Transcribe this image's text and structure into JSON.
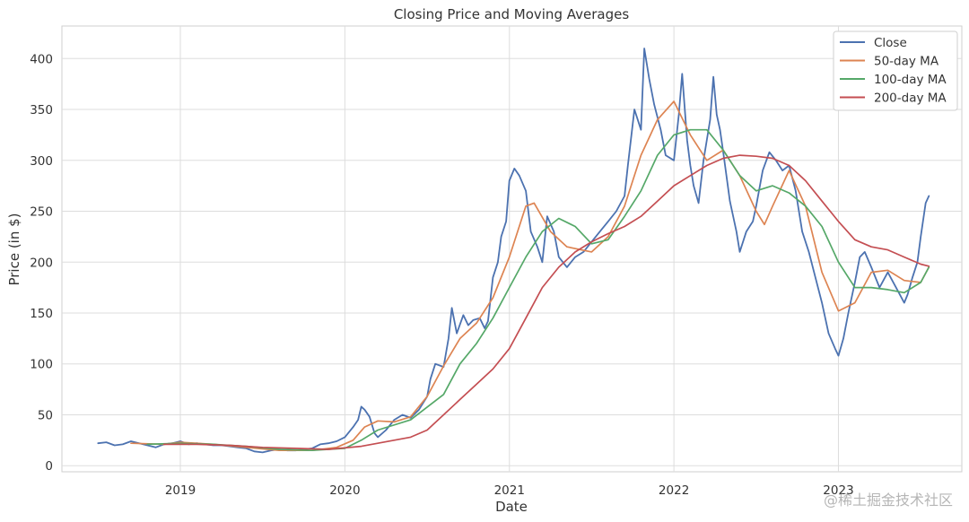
{
  "watermark": "@稀土掘金技术社区",
  "chart_data": {
    "type": "line",
    "title": "Closing Price and Moving Averages",
    "xlabel": "Date",
    "ylabel": "Price (in $)",
    "xlim": [
      2018.28,
      2023.75
    ],
    "ylim": [
      -6,
      432
    ],
    "x_ticks": [
      2019,
      2020,
      2021,
      2022,
      2023
    ],
    "x_tick_labels": [
      "2019",
      "2020",
      "2021",
      "2022",
      "2023"
    ],
    "y_ticks": [
      0,
      50,
      100,
      150,
      200,
      250,
      300,
      350,
      400
    ],
    "y_tick_labels": [
      "0",
      "50",
      "100",
      "150",
      "200",
      "250",
      "300",
      "350",
      "400"
    ],
    "grid": true,
    "legend_position": "top-right",
    "series": [
      {
        "name": "Close",
        "color": "#4c72b0",
        "points": [
          [
            2018.5,
            22
          ],
          [
            2018.55,
            23
          ],
          [
            2018.6,
            20
          ],
          [
            2018.65,
            21
          ],
          [
            2018.7,
            24
          ],
          [
            2018.75,
            22
          ],
          [
            2018.8,
            20
          ],
          [
            2018.85,
            18
          ],
          [
            2018.9,
            21
          ],
          [
            2018.95,
            22
          ],
          [
            2019.0,
            24
          ],
          [
            2019.05,
            21
          ],
          [
            2019.1,
            22
          ],
          [
            2019.15,
            21
          ],
          [
            2019.2,
            20
          ],
          [
            2019.25,
            20
          ],
          [
            2019.3,
            19
          ],
          [
            2019.35,
            18
          ],
          [
            2019.4,
            17
          ],
          [
            2019.45,
            14
          ],
          [
            2019.5,
            13
          ],
          [
            2019.55,
            15
          ],
          [
            2019.6,
            16
          ],
          [
            2019.65,
            15
          ],
          [
            2019.7,
            15
          ],
          [
            2019.75,
            16
          ],
          [
            2019.8,
            17
          ],
          [
            2019.85,
            21
          ],
          [
            2019.9,
            22
          ],
          [
            2019.95,
            24
          ],
          [
            2020.0,
            28
          ],
          [
            2020.05,
            38
          ],
          [
            2020.08,
            45
          ],
          [
            2020.1,
            58
          ],
          [
            2020.12,
            55
          ],
          [
            2020.15,
            48
          ],
          [
            2020.18,
            32
          ],
          [
            2020.2,
            28
          ],
          [
            2020.25,
            35
          ],
          [
            2020.3,
            45
          ],
          [
            2020.35,
            50
          ],
          [
            2020.4,
            47
          ],
          [
            2020.45,
            55
          ],
          [
            2020.5,
            68
          ],
          [
            2020.52,
            85
          ],
          [
            2020.55,
            100
          ],
          [
            2020.6,
            97
          ],
          [
            2020.63,
            125
          ],
          [
            2020.65,
            155
          ],
          [
            2020.68,
            130
          ],
          [
            2020.72,
            148
          ],
          [
            2020.75,
            138
          ],
          [
            2020.78,
            143
          ],
          [
            2020.82,
            145
          ],
          [
            2020.85,
            135
          ],
          [
            2020.87,
            142
          ],
          [
            2020.9,
            185
          ],
          [
            2020.93,
            200
          ],
          [
            2020.95,
            225
          ],
          [
            2020.98,
            240
          ],
          [
            2021.0,
            280
          ],
          [
            2021.03,
            292
          ],
          [
            2021.06,
            285
          ],
          [
            2021.1,
            270
          ],
          [
            2021.13,
            230
          ],
          [
            2021.17,
            215
          ],
          [
            2021.2,
            200
          ],
          [
            2021.23,
            245
          ],
          [
            2021.27,
            230
          ],
          [
            2021.3,
            205
          ],
          [
            2021.35,
            195
          ],
          [
            2021.4,
            205
          ],
          [
            2021.45,
            210
          ],
          [
            2021.5,
            220
          ],
          [
            2021.55,
            230
          ],
          [
            2021.6,
            240
          ],
          [
            2021.65,
            250
          ],
          [
            2021.7,
            265
          ],
          [
            2021.72,
            295
          ],
          [
            2021.76,
            350
          ],
          [
            2021.8,
            330
          ],
          [
            2021.82,
            410
          ],
          [
            2021.85,
            380
          ],
          [
            2021.88,
            355
          ],
          [
            2021.92,
            330
          ],
          [
            2021.95,
            305
          ],
          [
            2022.0,
            300
          ],
          [
            2022.03,
            345
          ],
          [
            2022.05,
            385
          ],
          [
            2022.08,
            320
          ],
          [
            2022.1,
            295
          ],
          [
            2022.12,
            275
          ],
          [
            2022.15,
            258
          ],
          [
            2022.18,
            300
          ],
          [
            2022.2,
            320
          ],
          [
            2022.22,
            340
          ],
          [
            2022.24,
            382
          ],
          [
            2022.26,
            345
          ],
          [
            2022.28,
            330
          ],
          [
            2022.3,
            308
          ],
          [
            2022.34,
            260
          ],
          [
            2022.38,
            230
          ],
          [
            2022.4,
            210
          ],
          [
            2022.44,
            230
          ],
          [
            2022.48,
            240
          ],
          [
            2022.5,
            255
          ],
          [
            2022.54,
            290
          ],
          [
            2022.58,
            308
          ],
          [
            2022.62,
            300
          ],
          [
            2022.66,
            290
          ],
          [
            2022.7,
            295
          ],
          [
            2022.74,
            270
          ],
          [
            2022.78,
            230
          ],
          [
            2022.82,
            210
          ],
          [
            2022.86,
            185
          ],
          [
            2022.9,
            160
          ],
          [
            2022.94,
            130
          ],
          [
            2022.98,
            115
          ],
          [
            2023.0,
            108
          ],
          [
            2023.03,
            125
          ],
          [
            2023.06,
            150
          ],
          [
            2023.1,
            180
          ],
          [
            2023.13,
            205
          ],
          [
            2023.16,
            210
          ],
          [
            2023.2,
            195
          ],
          [
            2023.25,
            175
          ],
          [
            2023.3,
            190
          ],
          [
            2023.35,
            175
          ],
          [
            2023.4,
            160
          ],
          [
            2023.42,
            168
          ],
          [
            2023.45,
            185
          ],
          [
            2023.48,
            200
          ],
          [
            2023.5,
            225
          ],
          [
            2023.53,
            258
          ],
          [
            2023.55,
            265
          ]
        ]
      },
      {
        "name": "50-day MA",
        "color": "#dd8452",
        "points": [
          [
            2018.7,
            22
          ],
          [
            2018.9,
            21
          ],
          [
            2019.0,
            23
          ],
          [
            2019.2,
            21
          ],
          [
            2019.4,
            18
          ],
          [
            2019.6,
            15
          ],
          [
            2019.8,
            15
          ],
          [
            2019.95,
            18
          ],
          [
            2020.05,
            25
          ],
          [
            2020.12,
            38
          ],
          [
            2020.2,
            44
          ],
          [
            2020.3,
            43
          ],
          [
            2020.4,
            48
          ],
          [
            2020.5,
            68
          ],
          [
            2020.6,
            98
          ],
          [
            2020.7,
            125
          ],
          [
            2020.8,
            140
          ],
          [
            2020.9,
            165
          ],
          [
            2021.0,
            205
          ],
          [
            2021.1,
            255
          ],
          [
            2021.15,
            258
          ],
          [
            2021.25,
            230
          ],
          [
            2021.35,
            215
          ],
          [
            2021.5,
            210
          ],
          [
            2021.6,
            225
          ],
          [
            2021.7,
            255
          ],
          [
            2021.8,
            305
          ],
          [
            2021.9,
            340
          ],
          [
            2022.0,
            358
          ],
          [
            2022.1,
            325
          ],
          [
            2022.2,
            300
          ],
          [
            2022.3,
            310
          ],
          [
            2022.4,
            285
          ],
          [
            2022.5,
            250
          ],
          [
            2022.55,
            237
          ],
          [
            2022.6,
            255
          ],
          [
            2022.7,
            290
          ],
          [
            2022.8,
            255
          ],
          [
            2022.9,
            190
          ],
          [
            2023.0,
            152
          ],
          [
            2023.1,
            160
          ],
          [
            2023.2,
            190
          ],
          [
            2023.3,
            192
          ],
          [
            2023.4,
            182
          ],
          [
            2023.5,
            180
          ],
          [
            2023.55,
            195
          ]
        ]
      },
      {
        "name": "100-day MA",
        "color": "#55a868",
        "points": [
          [
            2018.8,
            21
          ],
          [
            2019.0,
            22
          ],
          [
            2019.2,
            21
          ],
          [
            2019.4,
            19
          ],
          [
            2019.6,
            16
          ],
          [
            2019.8,
            15
          ],
          [
            2020.0,
            17
          ],
          [
            2020.1,
            25
          ],
          [
            2020.2,
            35
          ],
          [
            2020.4,
            45
          ],
          [
            2020.6,
            70
          ],
          [
            2020.7,
            100
          ],
          [
            2020.8,
            120
          ],
          [
            2020.9,
            145
          ],
          [
            2021.0,
            175
          ],
          [
            2021.1,
            205
          ],
          [
            2021.2,
            230
          ],
          [
            2021.3,
            243
          ],
          [
            2021.4,
            235
          ],
          [
            2021.5,
            218
          ],
          [
            2021.6,
            222
          ],
          [
            2021.7,
            245
          ],
          [
            2021.8,
            270
          ],
          [
            2021.9,
            305
          ],
          [
            2022.0,
            325
          ],
          [
            2022.1,
            330
          ],
          [
            2022.2,
            330
          ],
          [
            2022.3,
            310
          ],
          [
            2022.4,
            285
          ],
          [
            2022.5,
            270
          ],
          [
            2022.6,
            275
          ],
          [
            2022.7,
            268
          ],
          [
            2022.8,
            255
          ],
          [
            2022.9,
            235
          ],
          [
            2023.0,
            200
          ],
          [
            2023.1,
            175
          ],
          [
            2023.2,
            175
          ],
          [
            2023.3,
            173
          ],
          [
            2023.4,
            170
          ],
          [
            2023.5,
            180
          ],
          [
            2023.55,
            195
          ]
        ]
      },
      {
        "name": "200-day MA",
        "color": "#c44e52",
        "points": [
          [
            2018.9,
            21
          ],
          [
            2019.1,
            21
          ],
          [
            2019.3,
            20
          ],
          [
            2019.5,
            18
          ],
          [
            2019.7,
            17
          ],
          [
            2019.9,
            16
          ],
          [
            2020.1,
            19
          ],
          [
            2020.2,
            22
          ],
          [
            2020.4,
            28
          ],
          [
            2020.5,
            35
          ],
          [
            2020.6,
            50
          ],
          [
            2020.7,
            65
          ],
          [
            2020.8,
            80
          ],
          [
            2020.9,
            95
          ],
          [
            2021.0,
            115
          ],
          [
            2021.1,
            145
          ],
          [
            2021.2,
            175
          ],
          [
            2021.3,
            195
          ],
          [
            2021.4,
            210
          ],
          [
            2021.5,
            220
          ],
          [
            2021.6,
            228
          ],
          [
            2021.7,
            235
          ],
          [
            2021.8,
            245
          ],
          [
            2021.9,
            260
          ],
          [
            2022.0,
            275
          ],
          [
            2022.1,
            285
          ],
          [
            2022.2,
            295
          ],
          [
            2022.3,
            302
          ],
          [
            2022.4,
            305
          ],
          [
            2022.5,
            304
          ],
          [
            2022.6,
            302
          ],
          [
            2022.7,
            295
          ],
          [
            2022.8,
            280
          ],
          [
            2022.9,
            260
          ],
          [
            2023.0,
            240
          ],
          [
            2023.1,
            222
          ],
          [
            2023.2,
            215
          ],
          [
            2023.3,
            212
          ],
          [
            2023.4,
            205
          ],
          [
            2023.5,
            198
          ],
          [
            2023.55,
            196
          ]
        ]
      }
    ]
  }
}
